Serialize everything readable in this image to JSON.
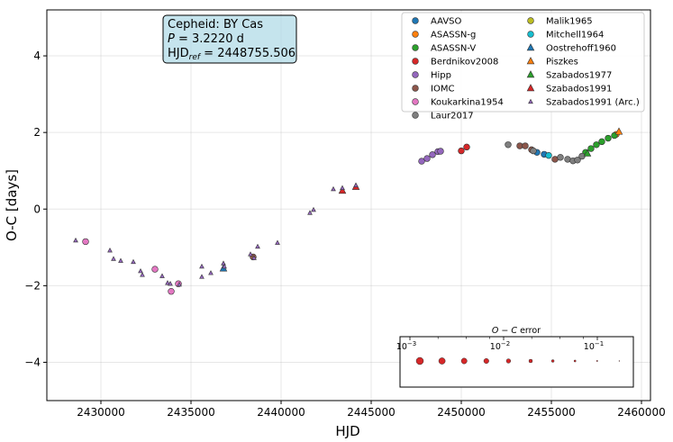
{
  "chart_data": {
    "type": "scatter",
    "xlabel": "HJD",
    "ylabel": "O-C [days]",
    "xlim": [
      2427000,
      2460500
    ],
    "ylim": [
      -5.0,
      5.2
    ],
    "x_ticks": [
      2430000,
      2435000,
      2440000,
      2445000,
      2450000,
      2455000,
      2460000
    ],
    "x_tick_labels": [
      "2430000",
      "2435000",
      "2440000",
      "2445000",
      "2450000",
      "2455000",
      "2460000"
    ],
    "y_ticks": [
      -4,
      -2,
      0,
      2,
      4
    ],
    "y_tick_labels": [
      "−4",
      "−2",
      "0",
      "2",
      "4"
    ],
    "grid": true,
    "info_box": {
      "line1": "Cepheid: BY Cas",
      "line2_sym": "P",
      "line2_val": " = 3.2220 d",
      "line3_sym": "HJD",
      "line3_sub": "ref",
      "line3_val": " = 2448755.506"
    },
    "legend_placement": "top-right",
    "series": [
      {
        "name": "AAVSO",
        "marker": "circle",
        "color": "#1f77b4",
        "points": [
          [
            2454200,
            1.48
          ],
          [
            2454600,
            1.43
          ]
        ]
      },
      {
        "name": "ASASSN-g",
        "marker": "circle",
        "color": "#ff7f0e",
        "points": [
          [
            2458600,
            1.95
          ]
        ]
      },
      {
        "name": "ASASSN-V",
        "marker": "circle",
        "color": "#2ca02c",
        "points": [
          [
            2456900,
            1.48
          ],
          [
            2457200,
            1.58
          ],
          [
            2457500,
            1.68
          ],
          [
            2457800,
            1.76
          ],
          [
            2458150,
            1.85
          ],
          [
            2458500,
            1.92
          ]
        ]
      },
      {
        "name": "Berdnikov2008",
        "marker": "circle",
        "color": "#d62728",
        "points": [
          [
            2450000,
            1.52
          ],
          [
            2450300,
            1.62
          ]
        ]
      },
      {
        "name": "Hipp",
        "marker": "circle",
        "color": "#9467bd",
        "points": [
          [
            2447800,
            1.25
          ],
          [
            2448100,
            1.32
          ],
          [
            2448400,
            1.42
          ],
          [
            2448700,
            1.5
          ],
          [
            2448850,
            1.51
          ]
        ]
      },
      {
        "name": "IOMC",
        "marker": "circle",
        "color": "#8c564b",
        "points": [
          [
            2438450,
            -1.25
          ],
          [
            2453250,
            1.65
          ],
          [
            2453550,
            1.65
          ],
          [
            2453900,
            1.55
          ],
          [
            2455200,
            1.3
          ]
        ]
      },
      {
        "name": "Koukarkina1954",
        "marker": "circle",
        "color": "#e377c2",
        "points": [
          [
            2429150,
            -0.85
          ],
          [
            2433000,
            -1.57
          ],
          [
            2433900,
            -2.15
          ],
          [
            2434300,
            -1.95
          ]
        ]
      },
      {
        "name": "Laur2017",
        "marker": "circle",
        "color": "#7f7f7f",
        "points": [
          [
            2452600,
            1.68
          ],
          [
            2454000,
            1.52
          ],
          [
            2455500,
            1.35
          ],
          [
            2455900,
            1.3
          ],
          [
            2456200,
            1.26
          ],
          [
            2456450,
            1.28
          ],
          [
            2456700,
            1.38
          ]
        ]
      },
      {
        "name": "Malik1965",
        "marker": "circle",
        "color": "#bcbd22",
        "points": []
      },
      {
        "name": "Mitchell1964",
        "marker": "circle",
        "color": "#17becf",
        "points": [
          [
            2454850,
            1.4
          ]
        ]
      },
      {
        "name": "Oostrehoff1960",
        "marker": "triangle",
        "color": "#1f77b4",
        "points": [
          [
            2436800,
            -1.55
          ]
        ]
      },
      {
        "name": "Piszkes",
        "marker": "triangle",
        "color": "#ff7f0e",
        "points": [
          [
            2458750,
            2.02
          ]
        ]
      },
      {
        "name": "Szabados1977",
        "marker": "triangle",
        "color": "#2ca02c",
        "points": [
          [
            2457000,
            1.45
          ]
        ]
      },
      {
        "name": "Szabados1991",
        "marker": "triangle",
        "color": "#d62728",
        "points": [
          [
            2443400,
            0.48
          ],
          [
            2444150,
            0.58
          ]
        ]
      },
      {
        "name": "Szabados1991 (Arc.)",
        "marker": "triangle_small",
        "color": "#9467bd",
        "points": [
          [
            2428600,
            -0.82
          ],
          [
            2430500,
            -1.08
          ],
          [
            2430700,
            -1.3
          ],
          [
            2431100,
            -1.35
          ],
          [
            2431800,
            -1.38
          ],
          [
            2432200,
            -1.62
          ],
          [
            2432300,
            -1.72
          ],
          [
            2433400,
            -1.75
          ],
          [
            2433700,
            -1.93
          ],
          [
            2433850,
            -1.95
          ],
          [
            2434350,
            -1.97
          ],
          [
            2435600,
            -1.5
          ],
          [
            2435600,
            -1.77
          ],
          [
            2436100,
            -1.67
          ],
          [
            2436800,
            -1.42
          ],
          [
            2436850,
            -1.5
          ],
          [
            2438300,
            -1.18
          ],
          [
            2438500,
            -1.28
          ],
          [
            2438700,
            -0.98
          ],
          [
            2439800,
            -0.88
          ],
          [
            2441600,
            -0.1
          ],
          [
            2441800,
            -0.02
          ],
          [
            2442900,
            0.52
          ],
          [
            2443400,
            0.55
          ],
          [
            2444150,
            0.62
          ]
        ]
      }
    ],
    "error_scale": {
      "title_sym": "O − C",
      "title_text": " error",
      "tick_labels": [
        "10",
        "10",
        "10"
      ],
      "tick_exponents": [
        "−3",
        "−2",
        "−1"
      ],
      "marker_sizes": [
        4.0,
        3.6,
        3.2,
        2.8,
        2.4,
        2.0,
        1.5,
        1.1,
        0.7,
        0.45
      ]
    }
  }
}
